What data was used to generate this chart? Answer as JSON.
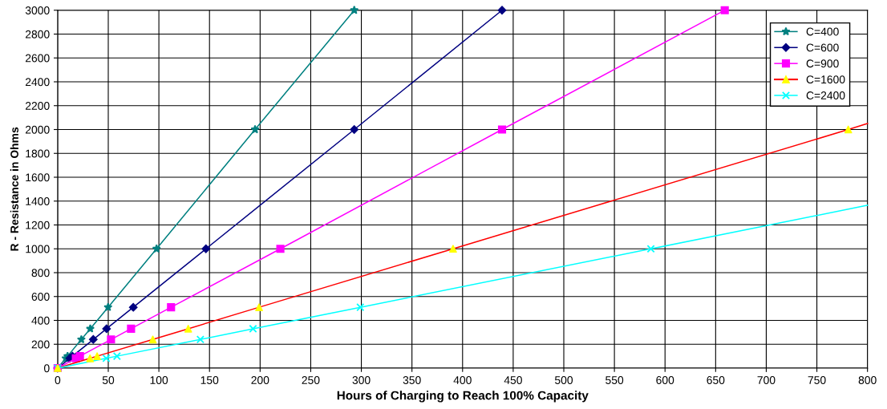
{
  "chart_data": {
    "type": "line",
    "xlabel": "Hours of Charging to Reach 100% Capacity",
    "ylabel": "R - Resistance in Ohms",
    "xlim": [
      0,
      800
    ],
    "ylim": [
      0,
      3000
    ],
    "xticks": [
      0,
      50,
      100,
      150,
      200,
      250,
      300,
      350,
      400,
      450,
      500,
      550,
      600,
      650,
      700,
      750,
      800
    ],
    "yticks": [
      0,
      200,
      400,
      600,
      800,
      1000,
      1200,
      1400,
      1600,
      1800,
      2000,
      2200,
      2400,
      2600,
      2800,
      3000
    ],
    "grid": true,
    "legend": "top right",
    "series": [
      {
        "name": "C=400",
        "color": "#008080",
        "marker": "star",
        "x": [
          0,
          8,
          9.8,
          23.4,
          32.2,
          49.8,
          97.7,
          195,
          293
        ],
        "values": [
          0,
          82,
          100,
          240,
          330,
          510,
          1000,
          2000,
          3000
        ]
      },
      {
        "name": "C=600",
        "color": "#000080",
        "marker": "diamond",
        "x": [
          0,
          12,
          14.6,
          35.2,
          48.3,
          74.7,
          146.5,
          293,
          439
        ],
        "values": [
          0,
          82,
          100,
          240,
          330,
          510,
          1000,
          2000,
          3000
        ]
      },
      {
        "name": "C=900",
        "color": "#ff00ff",
        "marker": "square",
        "x": [
          0,
          18,
          22,
          52.7,
          72.5,
          112,
          220,
          439,
          659
        ],
        "values": [
          0,
          82,
          100,
          240,
          330,
          510,
          1000,
          2000,
          3000
        ]
      },
      {
        "name": "C=1600",
        "color": "#ff0000",
        "colors": [
          "#ffff00",
          "#ffff00",
          "#ffff00",
          "#ffff00",
          "#ffff00",
          "#ffff00",
          "#ffff00",
          "#ffff00"
        ],
        "marker": "triangle",
        "x": [
          0,
          32,
          39,
          94,
          129,
          199,
          390.6,
          781
        ],
        "values": [
          0,
          82,
          100,
          240,
          330,
          510,
          1000,
          2000
        ]
      },
      {
        "name": "C=2400",
        "color": "#00ffff",
        "marker": "cross",
        "x": [
          0,
          48,
          58.6,
          141,
          193,
          299,
          586
        ],
        "values": [
          0,
          82,
          100,
          240,
          330,
          510,
          1000
        ]
      },
      {
        "type": "line",
        "color": "#ff0000",
        "marker": "none",
        "x": [
          781,
          800
        ],
        "values": [
          2000,
          2050
        ]
      },
      {
        "type": "line",
        "color": "#00ffff",
        "marker": "none",
        "x": [
          586,
          800
        ],
        "values": [
          1000,
          1365
        ]
      }
    ]
  }
}
